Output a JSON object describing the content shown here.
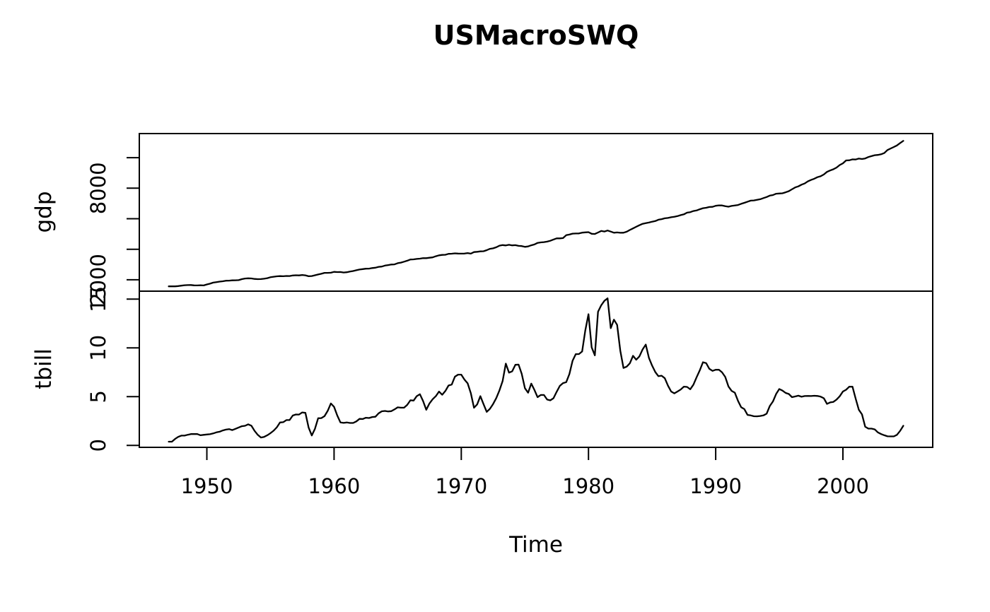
{
  "title": "USMacroSWQ",
  "colors": {
    "foreground": "#000000",
    "background": "#ffffff",
    "line": "#000000"
  },
  "chart_data": {
    "type": "line",
    "title": "USMacroSWQ",
    "xlabel": "Time",
    "x_start": 1947,
    "x_end": 2004.75,
    "frequency": 4,
    "x_range": [
      1944.69,
      2007.06
    ],
    "x_ticks": [
      1950,
      1960,
      1970,
      1980,
      1990,
      2000
    ],
    "grid": "off",
    "legend": "none",
    "panels": [
      {
        "ylabel": "gdp",
        "y_range": [
          1255,
          11578
        ],
        "y_ticks": [
          2000,
          4000,
          6000,
          8000,
          10000
        ],
        "y_tick_labels": [
          "2000",
          "",
          "",
          "8000",
          ""
        ],
        "values": [
          1570,
          1568,
          1568,
          1590,
          1616,
          1644,
          1654,
          1658,
          1633,
          1628,
          1646,
          1629,
          1696,
          1747,
          1816,
          1848,
          1880,
          1905,
          1941,
          1944,
          1964,
          1966,
          1978,
          2044,
          2085,
          2098,
          2086,
          2055,
          2044,
          2046,
          2068,
          2109,
          2168,
          2200,
          2228,
          2242,
          2231,
          2248,
          2246,
          2281,
          2295,
          2289,
          2313,
          2290,
          2230,
          2245,
          2296,
          2348,
          2392,
          2455,
          2453,
          2462,
          2517,
          2504,
          2508,
          2477,
          2494,
          2536,
          2573,
          2626,
          2671,
          2699,
          2725,
          2731,
          2767,
          2794,
          2849,
          2868,
          2932,
          2965,
          3001,
          3010,
          3086,
          3124,
          3187,
          3249,
          3329,
          3340,
          3364,
          3385,
          3415,
          3418,
          3444,
          3470,
          3544,
          3603,
          3628,
          3641,
          3697,
          3709,
          3733,
          3720,
          3713,
          3717,
          3751,
          3713,
          3814,
          3833,
          3862,
          3870,
          3941,
          4026,
          4062,
          4130,
          4234,
          4273,
          4251,
          4293,
          4256,
          4267,
          4223,
          4207,
          4157,
          4187,
          4259,
          4317,
          4416,
          4447,
          4468,
          4501,
          4555,
          4640,
          4714,
          4714,
          4730,
          4921,
          4961,
          5025,
          5033,
          5038,
          5090,
          5105,
          5122,
          5013,
          5002,
          5098,
          5198,
          5163,
          5225,
          5157,
          5081,
          5102,
          5080,
          5085,
          5150,
          5266,
          5364,
          5474,
          5576,
          5665,
          5713,
          5752,
          5804,
          5846,
          5935,
          5973,
          6026,
          6049,
          6098,
          6128,
          6173,
          6234,
          6289,
          6397,
          6430,
          6505,
          6542,
          6622,
          6688,
          6717,
          6767,
          6779,
          6847,
          6877,
          6870,
          6820,
          6787,
          6837,
          6869,
          6900,
          6976,
          7043,
          7114,
          7186,
          7198,
          7239,
          7277,
          7353,
          7419,
          7512,
          7552,
          7638,
          7653,
          7666,
          7733,
          7803,
          7930,
          8050,
          8120,
          8230,
          8310,
          8450,
          8540,
          8620,
          8720,
          8780,
          8900,
          9070,
          9160,
          9240,
          9350,
          9520,
          9630,
          9820,
          9830,
          9890,
          9880,
          9940,
          9910,
          9950,
          10040,
          10100,
          10160,
          10180,
          10220,
          10300,
          10500,
          10600,
          10700,
          10800,
          10960,
          11100
        ]
      },
      {
        "ylabel": "tbill",
        "y_range": [
          -0.2,
          15.82
        ],
        "y_ticks": [
          0,
          5,
          10,
          15
        ],
        "y_tick_labels": [
          "0",
          "5",
          "10",
          "15"
        ],
        "values": [
          0.38,
          0.38,
          0.66,
          0.87,
          1.0,
          1.0,
          1.09,
          1.16,
          1.17,
          1.16,
          1.04,
          1.08,
          1.12,
          1.15,
          1.23,
          1.34,
          1.4,
          1.53,
          1.62,
          1.67,
          1.57,
          1.7,
          1.84,
          1.97,
          2.01,
          2.16,
          2.02,
          1.49,
          1.08,
          0.81,
          0.87,
          1.04,
          1.26,
          1.51,
          1.86,
          2.35,
          2.38,
          2.6,
          2.6,
          3.06,
          3.17,
          3.16,
          3.38,
          3.34,
          1.84,
          1.02,
          1.71,
          2.79,
          2.8,
          3.0,
          3.54,
          4.3,
          3.95,
          3.07,
          2.36,
          2.31,
          2.35,
          2.3,
          2.3,
          2.46,
          2.72,
          2.71,
          2.84,
          2.81,
          2.91,
          2.94,
          3.29,
          3.5,
          3.53,
          3.48,
          3.51,
          3.69,
          3.9,
          3.87,
          3.87,
          4.16,
          4.63,
          4.6,
          5.05,
          5.25,
          4.55,
          3.66,
          4.3,
          4.74,
          5.05,
          5.52,
          5.19,
          5.58,
          6.14,
          6.24,
          7.05,
          7.26,
          7.26,
          6.75,
          6.37,
          5.36,
          3.86,
          4.21,
          5.05,
          4.23,
          3.44,
          3.75,
          4.24,
          4.85,
          5.64,
          6.61,
          8.39,
          7.46,
          7.6,
          8.27,
          8.29,
          7.34,
          5.87,
          5.4,
          6.34,
          5.68,
          4.95,
          5.17,
          5.17,
          4.7,
          4.62,
          4.84,
          5.5,
          6.11,
          6.39,
          6.48,
          7.32,
          8.68,
          9.36,
          9.37,
          9.63,
          11.8,
          13.46,
          10.05,
          9.24,
          13.71,
          14.37,
          14.83,
          15.09,
          12.02,
          12.9,
          12.36,
          9.71,
          7.94,
          8.08,
          8.42,
          9.19,
          8.79,
          9.13,
          9.84,
          10.34,
          8.97,
          8.18,
          7.52,
          7.1,
          7.15,
          6.89,
          6.13,
          5.53,
          5.34,
          5.53,
          5.73,
          6.03,
          6.0,
          5.76,
          6.23,
          6.99,
          7.7,
          8.53,
          8.44,
          7.85,
          7.64,
          7.76,
          7.77,
          7.49,
          7.02,
          6.05,
          5.59,
          5.41,
          4.58,
          3.91,
          3.72,
          3.13,
          3.08,
          2.99,
          2.98,
          3.02,
          3.08,
          3.25,
          4.04,
          4.51,
          5.28,
          5.78,
          5.62,
          5.38,
          5.27,
          4.95,
          5.02,
          5.1,
          4.99,
          5.06,
          5.07,
          5.06,
          5.09,
          5.07,
          5.0,
          4.84,
          4.26,
          4.41,
          4.46,
          4.7,
          5.04,
          5.53,
          5.71,
          6.02,
          6.03,
          4.8,
          3.66,
          3.18,
          1.92,
          1.72,
          1.72,
          1.64,
          1.33,
          1.16,
          1.04,
          0.93,
          0.92,
          0.92,
          1.08,
          1.49,
          2.01
        ]
      }
    ]
  }
}
